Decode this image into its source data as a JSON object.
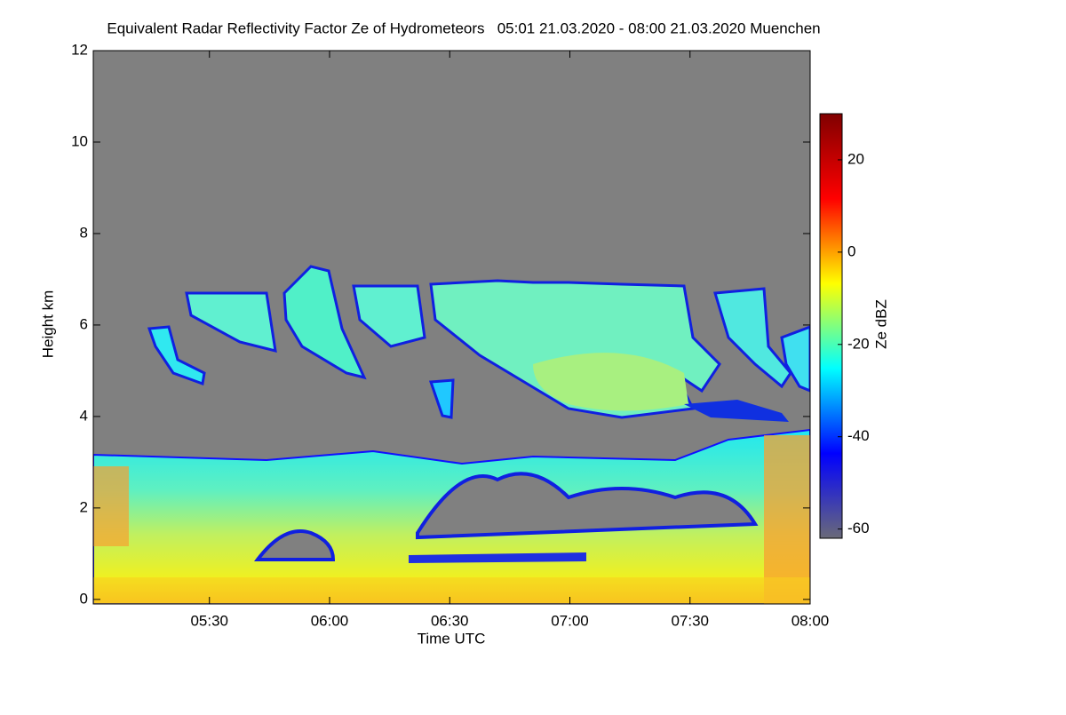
{
  "chart_data": {
    "type": "heatmap",
    "title": "Equivalent Radar Reflectivity Factor Ze of Hydrometeors   05:01 21.03.2020 - 08:00 21.03.2020 Muenchen",
    "x_label": "Time UTC",
    "y_label": "Height km",
    "colorbar_label": "Ze dBZ",
    "xlim": [
      301,
      480
    ],
    "xticks": [
      {
        "value": 330,
        "label": "05:30"
      },
      {
        "value": 360,
        "label": "06:00"
      },
      {
        "value": 390,
        "label": "06:30"
      },
      {
        "value": 420,
        "label": "07:00"
      },
      {
        "value": 450,
        "label": "07:30"
      },
      {
        "value": 480,
        "label": "08:00"
      }
    ],
    "ylim": [
      -0.1,
      12
    ],
    "yticks": [
      0,
      2,
      4,
      6,
      8,
      10,
      12
    ],
    "clim": [
      -62,
      30
    ],
    "cticks": [
      -60,
      -40,
      -20,
      0,
      20
    ],
    "colorscale": [
      "#6a6a78",
      "#0000ff",
      "#00ffff",
      "#ffff00",
      "#ff0000",
      "#800000"
    ],
    "background": "#808080"
  }
}
